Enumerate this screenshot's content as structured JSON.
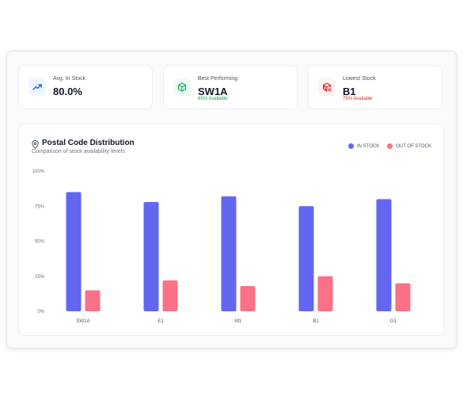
{
  "stats": [
    {
      "label": "Avg. In Stock",
      "value": "80.0%",
      "sub": "",
      "icon": "trending-up-icon",
      "color": "#2563eb",
      "bg": "#eff6ff"
    },
    {
      "label": "Best Performing",
      "value": "SW1A",
      "sub": "85% Available",
      "icon": "box-icon",
      "color": "#16a34a",
      "bg": "#ecfdf5"
    },
    {
      "label": "Lowest Stock",
      "value": "B1",
      "sub": "75% Available",
      "icon": "box-alert-icon",
      "color": "#dc2626",
      "bg": "#fef2f2"
    }
  ],
  "chart_card": {
    "title": "Postal Code Distribution",
    "subtitle": "Comparison of stock availability levels",
    "icon": "map-pin-icon"
  },
  "chart_data": {
    "type": "bar",
    "categories": [
      "SW1A",
      "E1",
      "M1",
      "B1",
      "G1"
    ],
    "series": [
      {
        "name": "IN STOCK",
        "values": [
          85,
          78,
          82,
          75,
          80
        ],
        "color": "#6366f1"
      },
      {
        "name": "OUT OF STOCK",
        "values": [
          15,
          22,
          18,
          25,
          20
        ],
        "color": "#fb7185"
      }
    ],
    "ylim": [
      0,
      100
    ],
    "yticks": [
      "0%",
      "25%",
      "50%",
      "75%",
      "100%"
    ],
    "legend_position": "top-right",
    "grid": false
  }
}
